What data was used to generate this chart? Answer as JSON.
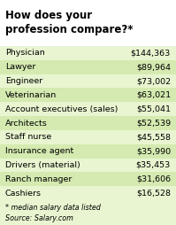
{
  "title": "How does your\nprofession compare?*",
  "rows": [
    [
      "Physician",
      "$144,363"
    ],
    [
      "Lawyer",
      "$89,964"
    ],
    [
      "Engineer",
      "$73,002"
    ],
    [
      "Veterinarian",
      "$63,021"
    ],
    [
      "Account executives (sales)",
      "$55,041"
    ],
    [
      "Architects",
      "$52,539"
    ],
    [
      "Staff nurse",
      "$45,558"
    ],
    [
      "Insurance agent",
      "$35,990"
    ],
    [
      "Drivers (material)",
      "$35,453"
    ],
    [
      "Ranch manager",
      "$31,606"
    ],
    [
      "Cashiers",
      "$16,528"
    ]
  ],
  "footnote": "* median salary data listed\nSource: Salary.com",
  "bg_color": "#ffffff",
  "title_bg": "#ffffff",
  "row_colors": [
    "#e8f5d0",
    "#d4eab0"
  ],
  "title_color": "#000000",
  "text_color": "#000000",
  "title_fontsize": 8.5,
  "row_fontsize": 6.8,
  "footnote_fontsize": 5.8
}
